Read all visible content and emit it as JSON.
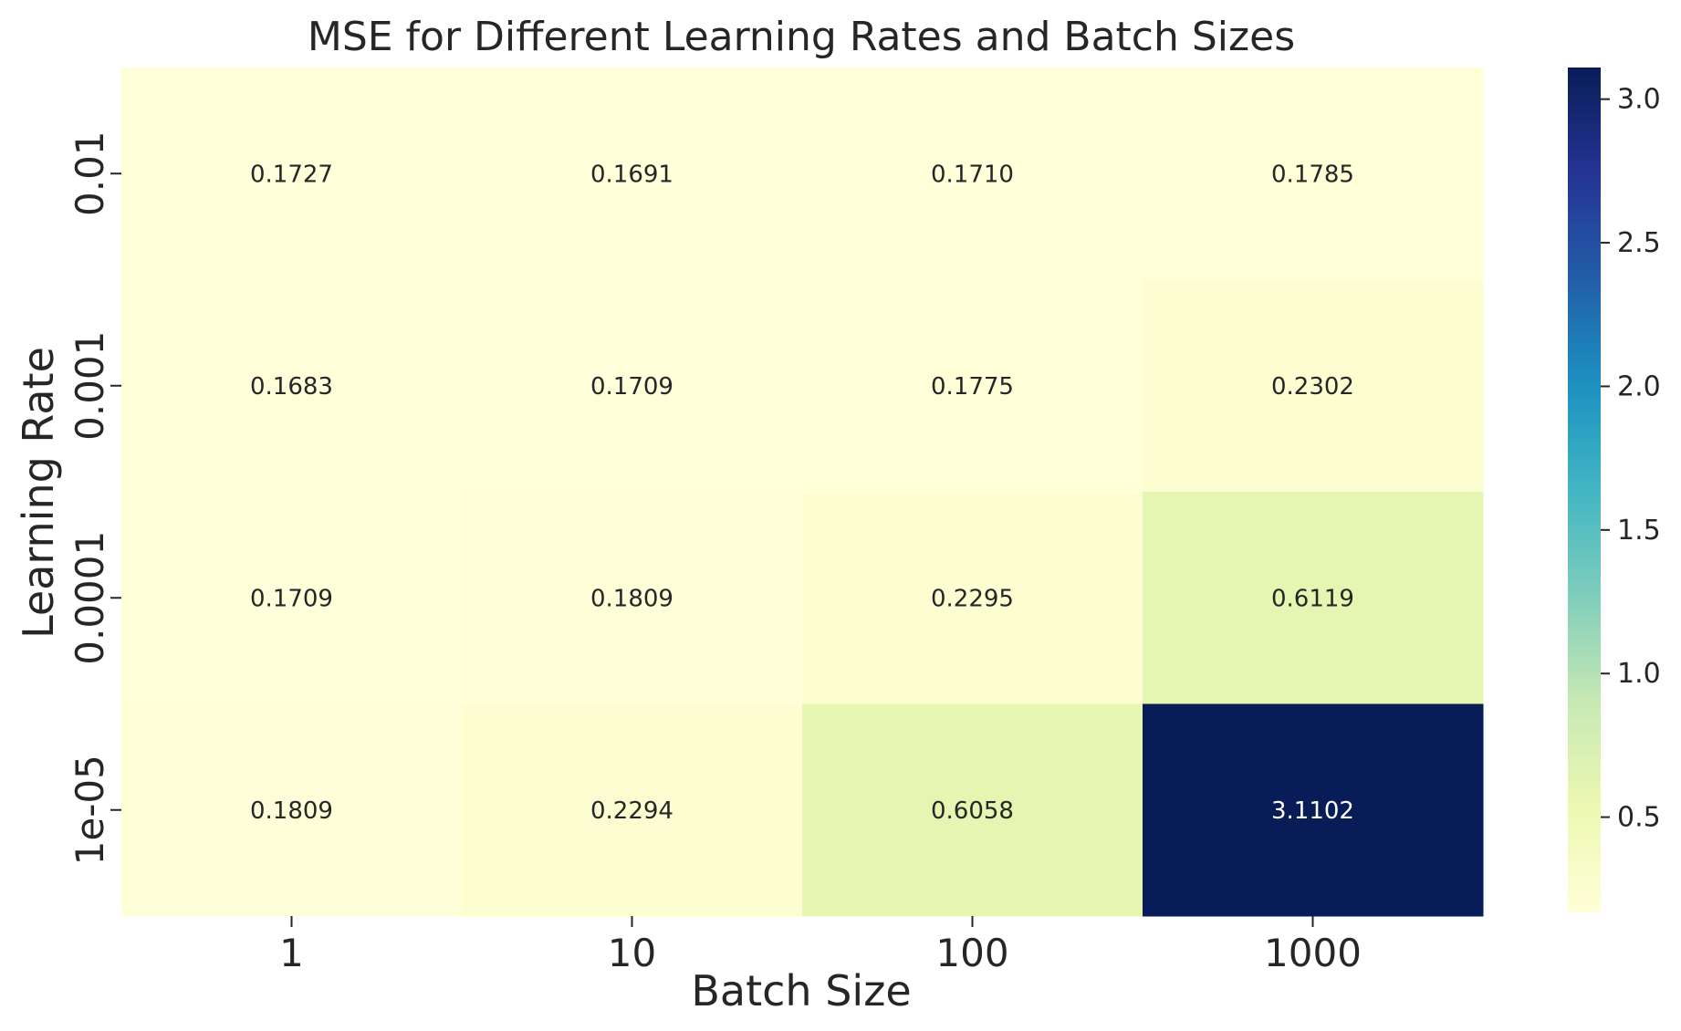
{
  "chart_data": {
    "type": "heatmap",
    "title": "MSE for Different Learning Rates and Batch Sizes",
    "xlabel": "Batch Size",
    "ylabel": "Learning Rate",
    "x_categories": [
      "1",
      "10",
      "100",
      "1000"
    ],
    "y_categories": [
      "0.01",
      "0.001",
      "0.0001",
      "1e-05"
    ],
    "values": [
      [
        0.1727,
        0.1691,
        0.171,
        0.1785
      ],
      [
        0.1683,
        0.1709,
        0.1775,
        0.2302
      ],
      [
        0.1709,
        0.1809,
        0.2295,
        0.6119
      ],
      [
        0.1809,
        0.2294,
        0.6058,
        3.1102
      ]
    ],
    "cell_labels": [
      [
        "0.1727",
        "0.1691",
        "0.1710",
        "0.1785"
      ],
      [
        "0.1683",
        "0.1709",
        "0.1775",
        "0.2302"
      ],
      [
        "0.1709",
        "0.1809",
        "0.2295",
        "0.6119"
      ],
      [
        "0.1809",
        "0.2294",
        "0.6058",
        "3.1102"
      ]
    ],
    "colormap": "YlGnBu",
    "colorbar": {
      "range": [
        0.1683,
        3.1102
      ],
      "ticks": [
        0.5,
        1.0,
        1.5,
        2.0,
        2.5,
        3.0
      ],
      "tick_labels": [
        "0.5",
        "1.0",
        "1.5",
        "2.0",
        "2.5",
        "3.0"
      ]
    }
  },
  "colors": {
    "colormap_stops": [
      "#ffffd9",
      "#edf8b1",
      "#c7e9b4",
      "#7fcdbb",
      "#41b6c4",
      "#1d91c0",
      "#225ea8",
      "#253494",
      "#081d58"
    ],
    "text_dark": "#262626",
    "text_light": "#ffffff"
  }
}
